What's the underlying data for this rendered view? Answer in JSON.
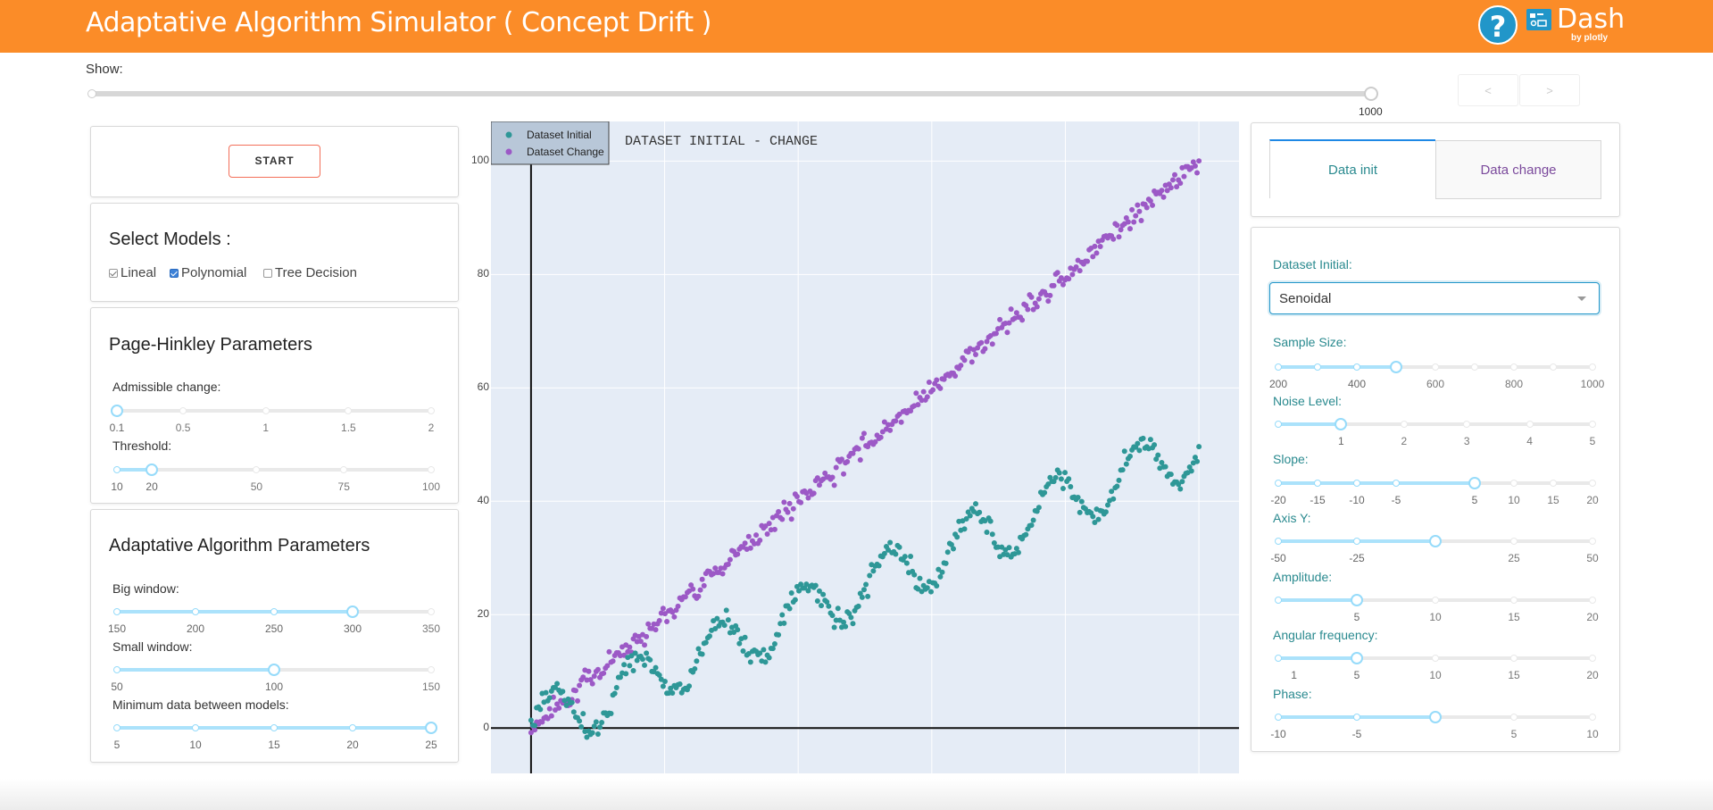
{
  "header": {
    "title": "Adaptative Algorithm Simulator ( Concept Drift )",
    "help_icon": "question-mark-icon",
    "help_label": "?",
    "logo_name": "Dash",
    "logo_by": "by plotly",
    "bg_color": "#fb8c28"
  },
  "show": {
    "label": "Show:",
    "max_label": "1000",
    "prev_label": "<",
    "next_label": ">"
  },
  "controls": {
    "start_label": "START",
    "models_title": "Select Models :",
    "models": [
      {
        "label": "Lineal",
        "checked": true
      },
      {
        "label": "Polynomial",
        "checked": true
      },
      {
        "label": "Tree Decision",
        "checked": false
      }
    ],
    "ph_title": "Page-Hinkley Parameters",
    "adaptive_title": "Adaptative Algorithm Parameters"
  },
  "sliders_left": [
    {
      "id": "admissible",
      "label": "Admissible change:",
      "min": 0.1,
      "max": 2,
      "value": 0.1,
      "marks": [
        "0.1",
        "0.5",
        "1",
        "1.5",
        "2"
      ],
      "mark_values": [
        0.1,
        0.5,
        1,
        1.5,
        2
      ]
    },
    {
      "id": "threshold",
      "label": "Threshold:",
      "min": 10,
      "max": 100,
      "value": 20,
      "marks": [
        "10",
        "20",
        "50",
        "75",
        "100"
      ],
      "mark_values": [
        10,
        20,
        50,
        75,
        100
      ]
    },
    {
      "id": "big-window",
      "label": "Big window:",
      "min": 150,
      "max": 350,
      "value": 300,
      "marks": [
        "150",
        "200",
        "250",
        "300",
        "350"
      ],
      "mark_values": [
        150,
        200,
        250,
        300,
        350
      ]
    },
    {
      "id": "small-window",
      "label": "Small window:",
      "min": 50,
      "max": 150,
      "value": 100,
      "marks": [
        "50",
        "100",
        "150"
      ],
      "mark_values": [
        50,
        100,
        150
      ]
    },
    {
      "id": "min-data",
      "label": "Minimum data between models:",
      "min": 5,
      "max": 25,
      "value": 25,
      "marks": [
        "5",
        "10",
        "15",
        "20",
        "25"
      ],
      "mark_values": [
        5,
        10,
        15,
        20,
        25
      ]
    }
  ],
  "tabs": [
    {
      "label": "Data init",
      "active": true
    },
    {
      "label": "Data change",
      "active": false
    }
  ],
  "dataset": {
    "label": "Dataset Initial:",
    "selected": "Senoidal"
  },
  "sliders_right": [
    {
      "id": "sample-size",
      "label": "Sample Size:",
      "min": 200,
      "max": 1000,
      "value": 500,
      "marks": [
        "200",
        "400",
        "600",
        "800",
        "1000"
      ],
      "mark_values": [
        200,
        400,
        600,
        800,
        1000
      ],
      "dots": [
        200,
        300,
        400,
        500,
        600,
        700,
        800,
        900,
        1000
      ]
    },
    {
      "id": "noise",
      "label": "Noise Level:",
      "min": 0,
      "max": 5,
      "value": 1,
      "marks": [
        "1",
        "2",
        "3",
        "4",
        "5"
      ],
      "mark_values": [
        1,
        2,
        3,
        4,
        5
      ],
      "dots": [
        0,
        1,
        2,
        3,
        4,
        5
      ]
    },
    {
      "id": "slope",
      "label": "Slope:",
      "min": -20,
      "max": 20,
      "value": 5,
      "marks": [
        "-20",
        "-15",
        "-10",
        "-5",
        "5",
        "10",
        "15",
        "20"
      ],
      "mark_values": [
        -20,
        -15,
        -10,
        -5,
        5,
        10,
        15,
        20
      ],
      "dots": [
        -20,
        -15,
        -10,
        -5,
        5,
        10,
        15,
        20
      ]
    },
    {
      "id": "axis-y",
      "label": "Axis Y:",
      "min": -50,
      "max": 50,
      "value": 0,
      "marks": [
        "-50",
        "-25",
        "25",
        "50"
      ],
      "mark_values": [
        -50,
        -25,
        25,
        50
      ],
      "dots": [
        -50,
        -25,
        25,
        50
      ]
    },
    {
      "id": "amplitude",
      "label": "Amplitude:",
      "min": 0,
      "max": 20,
      "value": 5,
      "marks": [
        "5",
        "10",
        "15",
        "20"
      ],
      "mark_values": [
        5,
        10,
        15,
        20
      ],
      "dots": [
        0,
        5,
        10,
        15,
        20
      ]
    },
    {
      "id": "angular",
      "label": "Angular frequency:",
      "min": 0,
      "max": 20,
      "value": 5,
      "marks": [
        "1",
        "5",
        "10",
        "15",
        "20"
      ],
      "mark_values": [
        1,
        5,
        10,
        15,
        20
      ],
      "dots": [
        0,
        5,
        10,
        15,
        20
      ]
    },
    {
      "id": "phase",
      "label": "Phase:",
      "min": -10,
      "max": 10,
      "value": 0,
      "marks": [
        "-10",
        "-5",
        "5",
        "10"
      ],
      "mark_values": [
        -10,
        -5,
        5,
        10
      ],
      "dots": [
        -10,
        -5,
        5,
        10
      ]
    }
  ],
  "chart_data": {
    "type": "scatter",
    "title": "DATASET INITIAL - CHANGE",
    "xlim": [
      -0.6,
      10.6
    ],
    "ylim": [
      -8,
      107
    ],
    "x_ticks": [
      0,
      2,
      4,
      6,
      8,
      10
    ],
    "y_ticks": [
      0,
      20,
      40,
      60,
      80,
      100
    ],
    "grid": true,
    "legend_position": "top-left",
    "series": [
      {
        "name": "Dataset Initial",
        "color": "#2e9797",
        "model": "y = 5x + 5*sin(5x) + noise(1)",
        "n": 500,
        "x_range": [
          0,
          10
        ]
      },
      {
        "name": "Dataset Change",
        "color": "#9c59c6",
        "model": "y = 10x + noise(1)",
        "n": 500,
        "x_range": [
          0,
          10
        ]
      }
    ]
  }
}
